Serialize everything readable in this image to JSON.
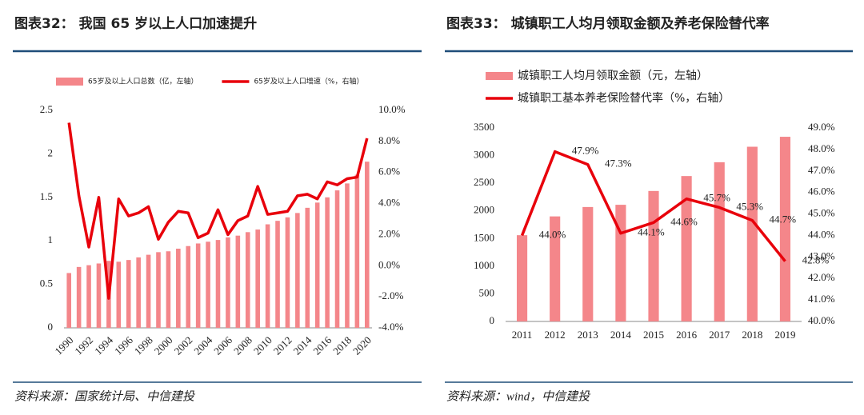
{
  "chart_data": [
    {
      "type": "combo",
      "title": "图表32： 我国 65 岁以上人口加速提升",
      "source": "资料来源：国家统计局、中信建投",
      "categories": [
        "1990",
        null,
        "1992",
        null,
        "1994",
        null,
        "1996",
        null,
        "1998",
        null,
        "2000",
        null,
        "2002",
        null,
        "2004",
        null,
        "2006",
        null,
        "2008",
        null,
        "2010",
        null,
        "2012",
        null,
        "2014",
        null,
        "2016",
        null,
        "2018",
        null,
        "2020"
      ],
      "legend_position": "top",
      "legend_direction": "horizontal",
      "ylim": [
        0,
        2.5
      ],
      "yticks": [
        0,
        0.5,
        1,
        1.5,
        2,
        2.5
      ],
      "y2lim": [
        -4,
        10
      ],
      "y2ticks": [
        {
          "value": -4,
          "label": "-4.0%"
        },
        {
          "value": -2,
          "label": "-2.0%"
        },
        {
          "value": 0,
          "label": "0.0%"
        },
        {
          "value": 2,
          "label": "2.0%"
        },
        {
          "value": 4,
          "label": "4.0%"
        },
        {
          "value": 6,
          "label": "6.0%"
        },
        {
          "value": 8,
          "label": "8.0%"
        },
        {
          "value": 10,
          "label": "10.0%"
        }
      ],
      "series": [
        {
          "name": "65岁及以上人口总数（亿，左轴）",
          "type": "bar",
          "color": "#f4868a",
          "values": [
            0.63,
            0.7,
            0.72,
            0.74,
            0.77,
            0.76,
            0.78,
            0.81,
            0.84,
            0.87,
            0.88,
            0.91,
            0.94,
            0.97,
            0.99,
            1.01,
            1.04,
            1.06,
            1.1,
            1.13,
            1.19,
            1.23,
            1.27,
            1.32,
            1.38,
            1.44,
            1.5,
            1.58,
            1.66,
            1.76,
            1.91
          ]
        },
        {
          "name": "65岁及以上人口增速（%，右轴）",
          "type": "line",
          "axis": "y2",
          "color": "#e8000b",
          "values": [
            9.2,
            4.5,
            1.2,
            4.4,
            -2.1,
            4.3,
            3.2,
            3.4,
            3.8,
            1.7,
            2.8,
            3.5,
            3.4,
            1.8,
            2.1,
            3.6,
            2.0,
            2.9,
            3.2,
            5.1,
            3.3,
            3.4,
            3.5,
            4.5,
            4.6,
            4.3,
            5.4,
            5.2,
            5.6,
            5.7,
            8.2
          ]
        }
      ]
    },
    {
      "type": "combo",
      "title": "图表33： 城镇职工人均月领取金额及养老保险替代率",
      "source": "资料来源：wind，中信建投",
      "categories": [
        "2011",
        "2012",
        "2013",
        "2014",
        "2015",
        "2016",
        "2017",
        "2018",
        "2019"
      ],
      "legend_position": "top-left",
      "legend_direction": "vertical",
      "ylim": [
        0,
        3500
      ],
      "yticks": [
        0,
        500,
        1000,
        1500,
        2000,
        2500,
        3000,
        3500
      ],
      "y2lim": [
        40,
        49
      ],
      "y2ticks": [
        {
          "value": 40,
          "label": "40.0%"
        },
        {
          "value": 41,
          "label": "41.0%"
        },
        {
          "value": 42,
          "label": "42.0%"
        },
        {
          "value": 43,
          "label": "43.0%"
        },
        {
          "value": 44,
          "label": "44.0%"
        },
        {
          "value": 45,
          "label": "45.0%"
        },
        {
          "value": 46,
          "label": "46.0%"
        },
        {
          "value": 47,
          "label": "47.0%"
        },
        {
          "value": 48,
          "label": "48.0%"
        },
        {
          "value": 49,
          "label": "49.0%"
        }
      ],
      "series": [
        {
          "name": "城镇职工人均月领取金额（元，左轴）",
          "type": "bar",
          "color": "#f4868a",
          "values": [
            1560,
            1900,
            2070,
            2110,
            2360,
            2630,
            2880,
            3160,
            3340
          ]
        },
        {
          "name": "城镇职工基本养老保险替代率（%，右轴）",
          "type": "line",
          "axis": "y2",
          "color": "#e8000b",
          "values": [
            44.0,
            47.9,
            47.3,
            44.1,
            44.6,
            45.7,
            45.3,
            44.7,
            42.8
          ],
          "value_labels": [
            "44.0%",
            "47.9%",
            "47.3%",
            "44.1%",
            "44.6%",
            "45.7%",
            "45.3%",
            "44.7%",
            "42.8%"
          ]
        }
      ]
    }
  ]
}
